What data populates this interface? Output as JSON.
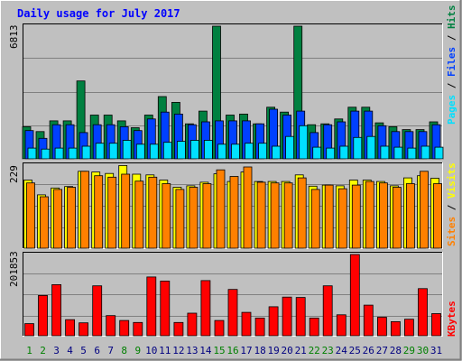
{
  "title": "Daily usage for July 2017",
  "colors": {
    "background": "#c0c0c0",
    "plot": "#c0c0c0",
    "frame_light": "#ffffff",
    "frame_dark": "#808080",
    "grid": "#808080",
    "title": "#0000ff",
    "hits": "#008040",
    "files": "#0040ff",
    "pages": "#00e0ff",
    "visits": "#ffff00",
    "sites": "#ff8000",
    "kbytes": "#ff0000",
    "weekday_label": "#000080",
    "weekend_label": "#008000"
  },
  "chart_data": [
    {
      "type": "bar",
      "name": "hits-files-pages",
      "categories": [
        "1",
        "2",
        "3",
        "4",
        "5",
        "6",
        "7",
        "8",
        "9",
        "10",
        "11",
        "12",
        "13",
        "14",
        "15",
        "16",
        "17",
        "18",
        "19",
        "20",
        "21",
        "22",
        "23",
        "24",
        "25",
        "26",
        "27",
        "28",
        "29",
        "30",
        "31"
      ],
      "ymax_label": "6813",
      "ymax": 6813,
      "legend_parts": [
        "Pages",
        "Files",
        "Hits"
      ],
      "series": [
        {
          "name": "Hits",
          "color_key": "hits",
          "values": [
            1650,
            1400,
            1950,
            1950,
            4000,
            2250,
            2250,
            1950,
            1600,
            2250,
            3200,
            2900,
            1800,
            2450,
            6813,
            2250,
            2300,
            1800,
            2650,
            2400,
            6813,
            1750,
            1800,
            2050,
            2650,
            2650,
            1850,
            1650,
            1500,
            1500,
            1900
          ]
        },
        {
          "name": "Files",
          "color_key": "files",
          "values": [
            1450,
            1050,
            1750,
            1750,
            1350,
            1750,
            1750,
            1650,
            1450,
            2050,
            2400,
            2300,
            1750,
            1900,
            1950,
            1950,
            1950,
            1800,
            2550,
            2250,
            2450,
            1350,
            1750,
            1900,
            2450,
            2450,
            1700,
            1400,
            1400,
            1400,
            1750
          ]
        },
        {
          "name": "Pages",
          "color_key": "pages",
          "values": [
            550,
            500,
            550,
            550,
            650,
            800,
            800,
            950,
            750,
            750,
            850,
            900,
            950,
            950,
            750,
            750,
            800,
            800,
            650,
            1150,
            1700,
            600,
            550,
            650,
            1100,
            1150,
            650,
            600,
            550,
            650,
            600
          ]
        }
      ]
    },
    {
      "type": "bar",
      "name": "visits-sites",
      "categories": [
        "1",
        "2",
        "3",
        "4",
        "5",
        "6",
        "7",
        "8",
        "9",
        "10",
        "11",
        "12",
        "13",
        "14",
        "15",
        "16",
        "17",
        "18",
        "19",
        "20",
        "21",
        "22",
        "23",
        "24",
        "25",
        "26",
        "27",
        "28",
        "29",
        "30",
        "31"
      ],
      "ymax_label": "229",
      "ymax": 229,
      "legend_parts": [
        "Sites",
        "Visits"
      ],
      "series": [
        {
          "name": "Visits",
          "color_key": "visits",
          "values": [
            188,
            147,
            166,
            170,
            212,
            210,
            206,
            228,
            204,
            202,
            188,
            168,
            172,
            182,
            205,
            184,
            210,
            184,
            184,
            184,
            202,
            171,
            174,
            172,
            188,
            188,
            184,
            172,
            194,
            200,
            193
          ]
        },
        {
          "name": "Sites",
          "color_key": "sites",
          "values": [
            180,
            142,
            162,
            168,
            212,
            200,
            196,
            204,
            185,
            196,
            178,
            162,
            168,
            178,
            216,
            198,
            224,
            182,
            180,
            180,
            194,
            162,
            174,
            164,
            174,
            184,
            180,
            168,
            178,
            212,
            178
          ]
        }
      ]
    },
    {
      "type": "bar",
      "name": "kbytes",
      "categories": [
        "1",
        "2",
        "3",
        "4",
        "5",
        "6",
        "7",
        "8",
        "9",
        "10",
        "11",
        "12",
        "13",
        "14",
        "15",
        "16",
        "17",
        "18",
        "19",
        "20",
        "21",
        "22",
        "23",
        "24",
        "25",
        "26",
        "27",
        "28",
        "29",
        "30",
        "31"
      ],
      "ymax_label": "201853",
      "ymax": 201853,
      "legend_parts": [
        "KBytes"
      ],
      "series": [
        {
          "name": "KBytes",
          "color_key": "kbytes",
          "values": [
            30000,
            100000,
            127000,
            40000,
            32000,
            124000,
            50000,
            38000,
            33000,
            146000,
            136000,
            33000,
            56000,
            137000,
            38000,
            115000,
            58000,
            44000,
            72000,
            96000,
            95000,
            44000,
            124000,
            52000,
            201853,
            76000,
            46000,
            35000,
            41000,
            117000,
            55000
          ]
        }
      ]
    }
  ],
  "x_labels": {
    "days": [
      "1",
      "2",
      "3",
      "4",
      "5",
      "6",
      "7",
      "8",
      "9",
      "10",
      "11",
      "12",
      "13",
      "14",
      "15",
      "16",
      "17",
      "18",
      "19",
      "20",
      "21",
      "22",
      "23",
      "24",
      "25",
      "26",
      "27",
      "28",
      "29",
      "30",
      "31"
    ],
    "weekend_days": [
      "1",
      "2",
      "8",
      "9",
      "15",
      "16",
      "22",
      "23",
      "29",
      "30"
    ]
  }
}
